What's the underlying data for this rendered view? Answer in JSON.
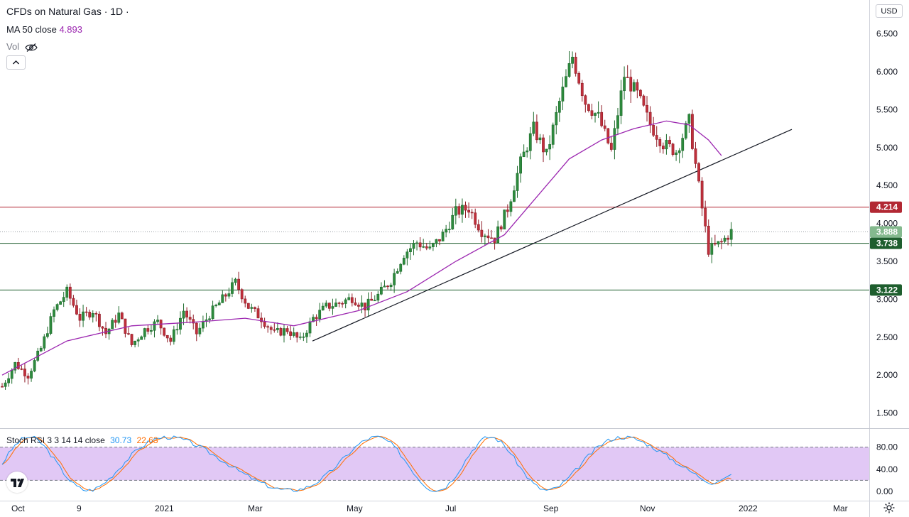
{
  "header": {
    "title": "CFDs on Natural Gas · 1D ·",
    "ma_label": "MA 50 close",
    "ma_value": "4.893",
    "vol_label": "Vol",
    "currency": "USD"
  },
  "stoch": {
    "label": "Stoch RSI 3 3 14 14 close",
    "k_value": "30.73",
    "d_value": "22.63",
    "ticks": [
      "80.00",
      "40.00",
      "0.00"
    ]
  },
  "colors": {
    "up": "#26a69a",
    "up_body": "#1e6b2c",
    "down": "#b22833",
    "ma": "#9c27b0",
    "resistance": "#b22833",
    "support": "#1e5e2e",
    "last": "#84b98e",
    "rsi_k": "#2196f3",
    "rsi_d": "#ff6d00",
    "rsi_band": "#e1c8f5"
  },
  "chart_data": {
    "type": "candlestick",
    "title": "CFDs on Natural Gas · 1D",
    "y_ticks": [
      "6.500",
      "6.000",
      "5.500",
      "5.000",
      "4.500",
      "4.000",
      "3.500",
      "3.000",
      "2.500",
      "2.000",
      "1.500"
    ],
    "ylim": [
      1.25,
      6.85
    ],
    "x_ticks": [
      "Oct",
      "9",
      "2021",
      "Mar",
      "May",
      "Jul",
      "Sep",
      "Nov",
      "2022",
      "Mar"
    ],
    "levels": [
      {
        "name": "resistance",
        "value": 4.214,
        "label": "4.214"
      },
      {
        "name": "last-price",
        "value": 3.888,
        "label": "3.888"
      },
      {
        "name": "support-1",
        "value": 3.738,
        "label": "3.738"
      },
      {
        "name": "support-2",
        "value": 3.122,
        "label": "3.122"
      }
    ],
    "trendline": {
      "from": [
        0.0,
        2.45
      ],
      "to": [
        1.0,
        5.24
      ]
    },
    "price_path": [
      [
        0,
        1.85
      ],
      [
        4,
        2.15
      ],
      [
        8,
        2.0
      ],
      [
        12,
        2.35
      ],
      [
        16,
        2.85
      ],
      [
        20,
        3.1
      ],
      [
        24,
        2.75
      ],
      [
        28,
        2.85
      ],
      [
        32,
        2.55
      ],
      [
        36,
        2.8
      ],
      [
        40,
        2.4
      ],
      [
        44,
        2.6
      ],
      [
        48,
        2.7
      ],
      [
        52,
        2.45
      ],
      [
        56,
        2.85
      ],
      [
        60,
        2.55
      ],
      [
        64,
        2.8
      ],
      [
        68,
        3.0
      ],
      [
        72,
        3.22
      ],
      [
        76,
        2.9
      ],
      [
        80,
        2.75
      ],
      [
        84,
        2.55
      ],
      [
        88,
        2.6
      ],
      [
        92,
        2.45
      ],
      [
        96,
        2.75
      ],
      [
        100,
        2.9
      ],
      [
        104,
        2.95
      ],
      [
        108,
        3.02
      ],
      [
        112,
        2.9
      ],
      [
        116,
        3.05
      ],
      [
        120,
        3.25
      ],
      [
        124,
        3.6
      ],
      [
        128,
        3.75
      ],
      [
        132,
        3.65
      ],
      [
        136,
        3.85
      ],
      [
        140,
        4.15
      ],
      [
        144,
        4.2
      ],
      [
        148,
        3.9
      ],
      [
        152,
        3.8
      ],
      [
        156,
        4.2
      ],
      [
        160,
        4.8
      ],
      [
        164,
        5.25
      ],
      [
        168,
        4.9
      ],
      [
        172,
        5.6
      ],
      [
        176,
        6.2
      ],
      [
        180,
        5.6
      ],
      [
        184,
        5.4
      ],
      [
        188,
        4.95
      ],
      [
        192,
        5.95
      ],
      [
        196,
        5.7
      ],
      [
        200,
        5.3
      ],
      [
        204,
        5.05
      ],
      [
        208,
        4.95
      ],
      [
        212,
        5.35
      ],
      [
        216,
        4.2
      ],
      [
        218,
        3.65
      ],
      [
        222,
        3.75
      ],
      [
        225,
        3.89
      ]
    ],
    "ma50": [
      [
        0,
        2.0
      ],
      [
        20,
        2.45
      ],
      [
        40,
        2.65
      ],
      [
        60,
        2.7
      ],
      [
        75,
        2.75
      ],
      [
        90,
        2.65
      ],
      [
        110,
        2.85
      ],
      [
        125,
        3.1
      ],
      [
        140,
        3.5
      ],
      [
        155,
        3.85
      ],
      [
        165,
        4.35
      ],
      [
        175,
        4.85
      ],
      [
        185,
        5.1
      ],
      [
        195,
        5.25
      ],
      [
        205,
        5.35
      ],
      [
        212,
        5.3
      ],
      [
        218,
        5.1
      ],
      [
        222,
        4.893
      ]
    ],
    "stoch_rsi": {
      "k_last": 30.73,
      "d_last": 22.63,
      "band": [
        20,
        80
      ]
    }
  }
}
